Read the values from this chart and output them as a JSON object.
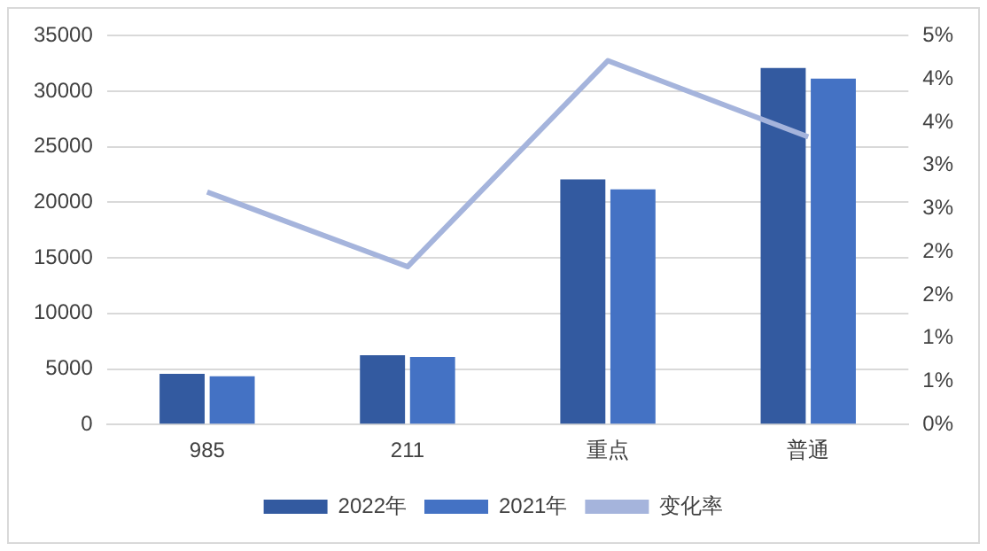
{
  "chart_data": {
    "type": "bar",
    "categories": [
      "985",
      "211",
      "重点",
      "普通"
    ],
    "series": [
      {
        "name": "2022年",
        "color": "#335aa0",
        "values": [
          4570,
          6240,
          22070,
          32100
        ]
      },
      {
        "name": "2021年",
        "color": "#4472c4",
        "values": [
          4350,
          6070,
          21180,
          31150
        ]
      },
      {
        "name": "变化率",
        "type": "line",
        "axis": "y2",
        "color": "#a5b4dc",
        "values": [
          2.99,
          2.03,
          4.68,
          3.7
        ]
      }
    ],
    "ylim": [
      0,
      35000
    ],
    "yticks": [
      0,
      5000,
      10000,
      15000,
      20000,
      25000,
      30000,
      35000
    ],
    "y2lim": [
      0,
      5
    ],
    "y2ticks": [
      {
        "value": 0,
        "label": "0%"
      },
      {
        "value": 0.556,
        "label": "1%"
      },
      {
        "value": 1.111,
        "label": "1%"
      },
      {
        "value": 1.667,
        "label": "2%"
      },
      {
        "value": 2.222,
        "label": "2%"
      },
      {
        "value": 2.778,
        "label": "3%"
      },
      {
        "value": 3.333,
        "label": "3%"
      },
      {
        "value": 3.889,
        "label": "4%"
      },
      {
        "value": 4.444,
        "label": "4%"
      },
      {
        "value": 5,
        "label": "5%"
      }
    ],
    "grid": "y",
    "legend": "bottom",
    "marker": "none"
  }
}
